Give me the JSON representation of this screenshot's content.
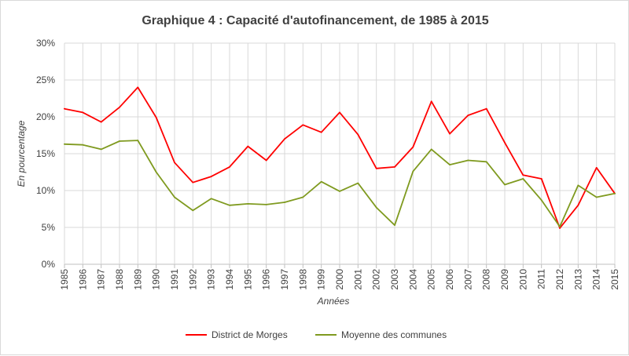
{
  "chart_data": {
    "type": "line",
    "title": "Graphique 4 : Capacité d'autofinancement, de 1985 à 2015",
    "xlabel": "Années",
    "ylabel": "En pourcentage",
    "ylim": [
      0,
      30
    ],
    "y_ticks": [
      "0%",
      "5%",
      "10%",
      "15%",
      "20%",
      "25%",
      "30%"
    ],
    "grid": true,
    "legend_position": "bottom",
    "categories": [
      "1985",
      "1986",
      "1987",
      "1988",
      "1989",
      "1990",
      "1991",
      "1992",
      "1993",
      "1994",
      "1995",
      "1996",
      "1997",
      "1998",
      "1999",
      "2000",
      "2001",
      "2002",
      "2003",
      "2004",
      "2005",
      "2006",
      "2007",
      "2008",
      "2009",
      "2010",
      "2011",
      "2012",
      "2013",
      "2014",
      "2015"
    ],
    "series": [
      {
        "name": "District de Morges",
        "color": "#ff0000",
        "values": [
          21.1,
          20.6,
          19.3,
          21.3,
          24.0,
          19.9,
          13.8,
          11.1,
          11.9,
          13.2,
          16.0,
          14.1,
          17.0,
          18.9,
          17.9,
          20.6,
          17.6,
          13.0,
          13.2,
          15.9,
          22.1,
          17.7,
          20.2,
          21.1,
          16.5,
          12.1,
          11.6,
          4.9,
          8.0,
          13.1,
          9.6
        ]
      },
      {
        "name": "Moyenne des communes",
        "color": "#7f9a1f",
        "values": [
          16.3,
          16.2,
          15.6,
          16.7,
          16.8,
          12.5,
          9.1,
          7.3,
          8.9,
          8.0,
          8.2,
          8.1,
          8.4,
          9.1,
          11.2,
          9.9,
          11.0,
          7.7,
          5.3,
          12.6,
          15.6,
          13.5,
          14.1,
          13.9,
          10.8,
          11.6,
          8.7,
          5.1,
          10.7,
          9.1,
          9.6
        ]
      }
    ]
  }
}
